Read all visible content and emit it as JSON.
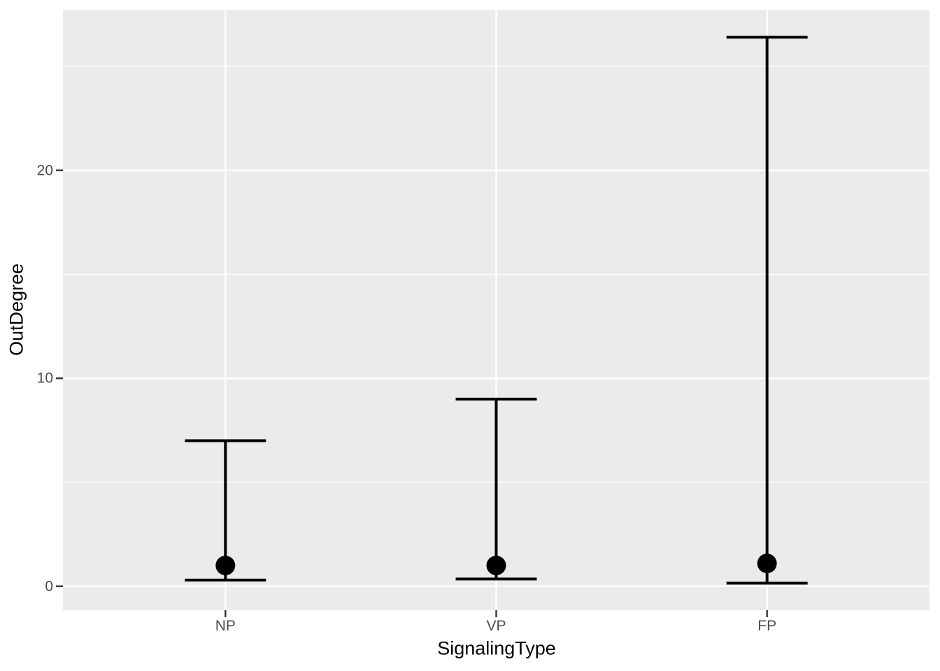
{
  "chart_data": {
    "type": "scatter",
    "subtype": "point-with-errorbar",
    "title": "",
    "xlabel": "SignalingType",
    "ylabel": "OutDegree",
    "categories": [
      "NP",
      "VP",
      "FP"
    ],
    "series": [
      {
        "name": "OutDegree",
        "points": [
          {
            "category": "NP",
            "y": 1.0,
            "ymin": 0.3,
            "ymax": 7.0
          },
          {
            "category": "VP",
            "y": 1.0,
            "ymin": 0.35,
            "ymax": 9.0
          },
          {
            "category": "FP",
            "y": 1.1,
            "ymin": 0.15,
            "ymax": 26.4
          }
        ]
      }
    ],
    "y_ticks": [
      {
        "value": 0,
        "label": "0"
      },
      {
        "value": 10,
        "label": "10"
      },
      {
        "value": 20,
        "label": "20"
      }
    ],
    "y_minor_ticks": [
      5,
      15,
      25
    ],
    "ylim": [
      -1.15,
      27.72
    ],
    "grid": "major-and-minor-horizontal, major-vertical",
    "legend": false,
    "theme": "ggplot2-grey"
  },
  "colors": {
    "background": "#FFFFFF",
    "panel": "#EBEBEB",
    "grid": "#FFFFFF",
    "series": "#000000",
    "axis_text": "#4D4D4D",
    "tick_mark": "#333333",
    "axis_title": "#000000"
  }
}
